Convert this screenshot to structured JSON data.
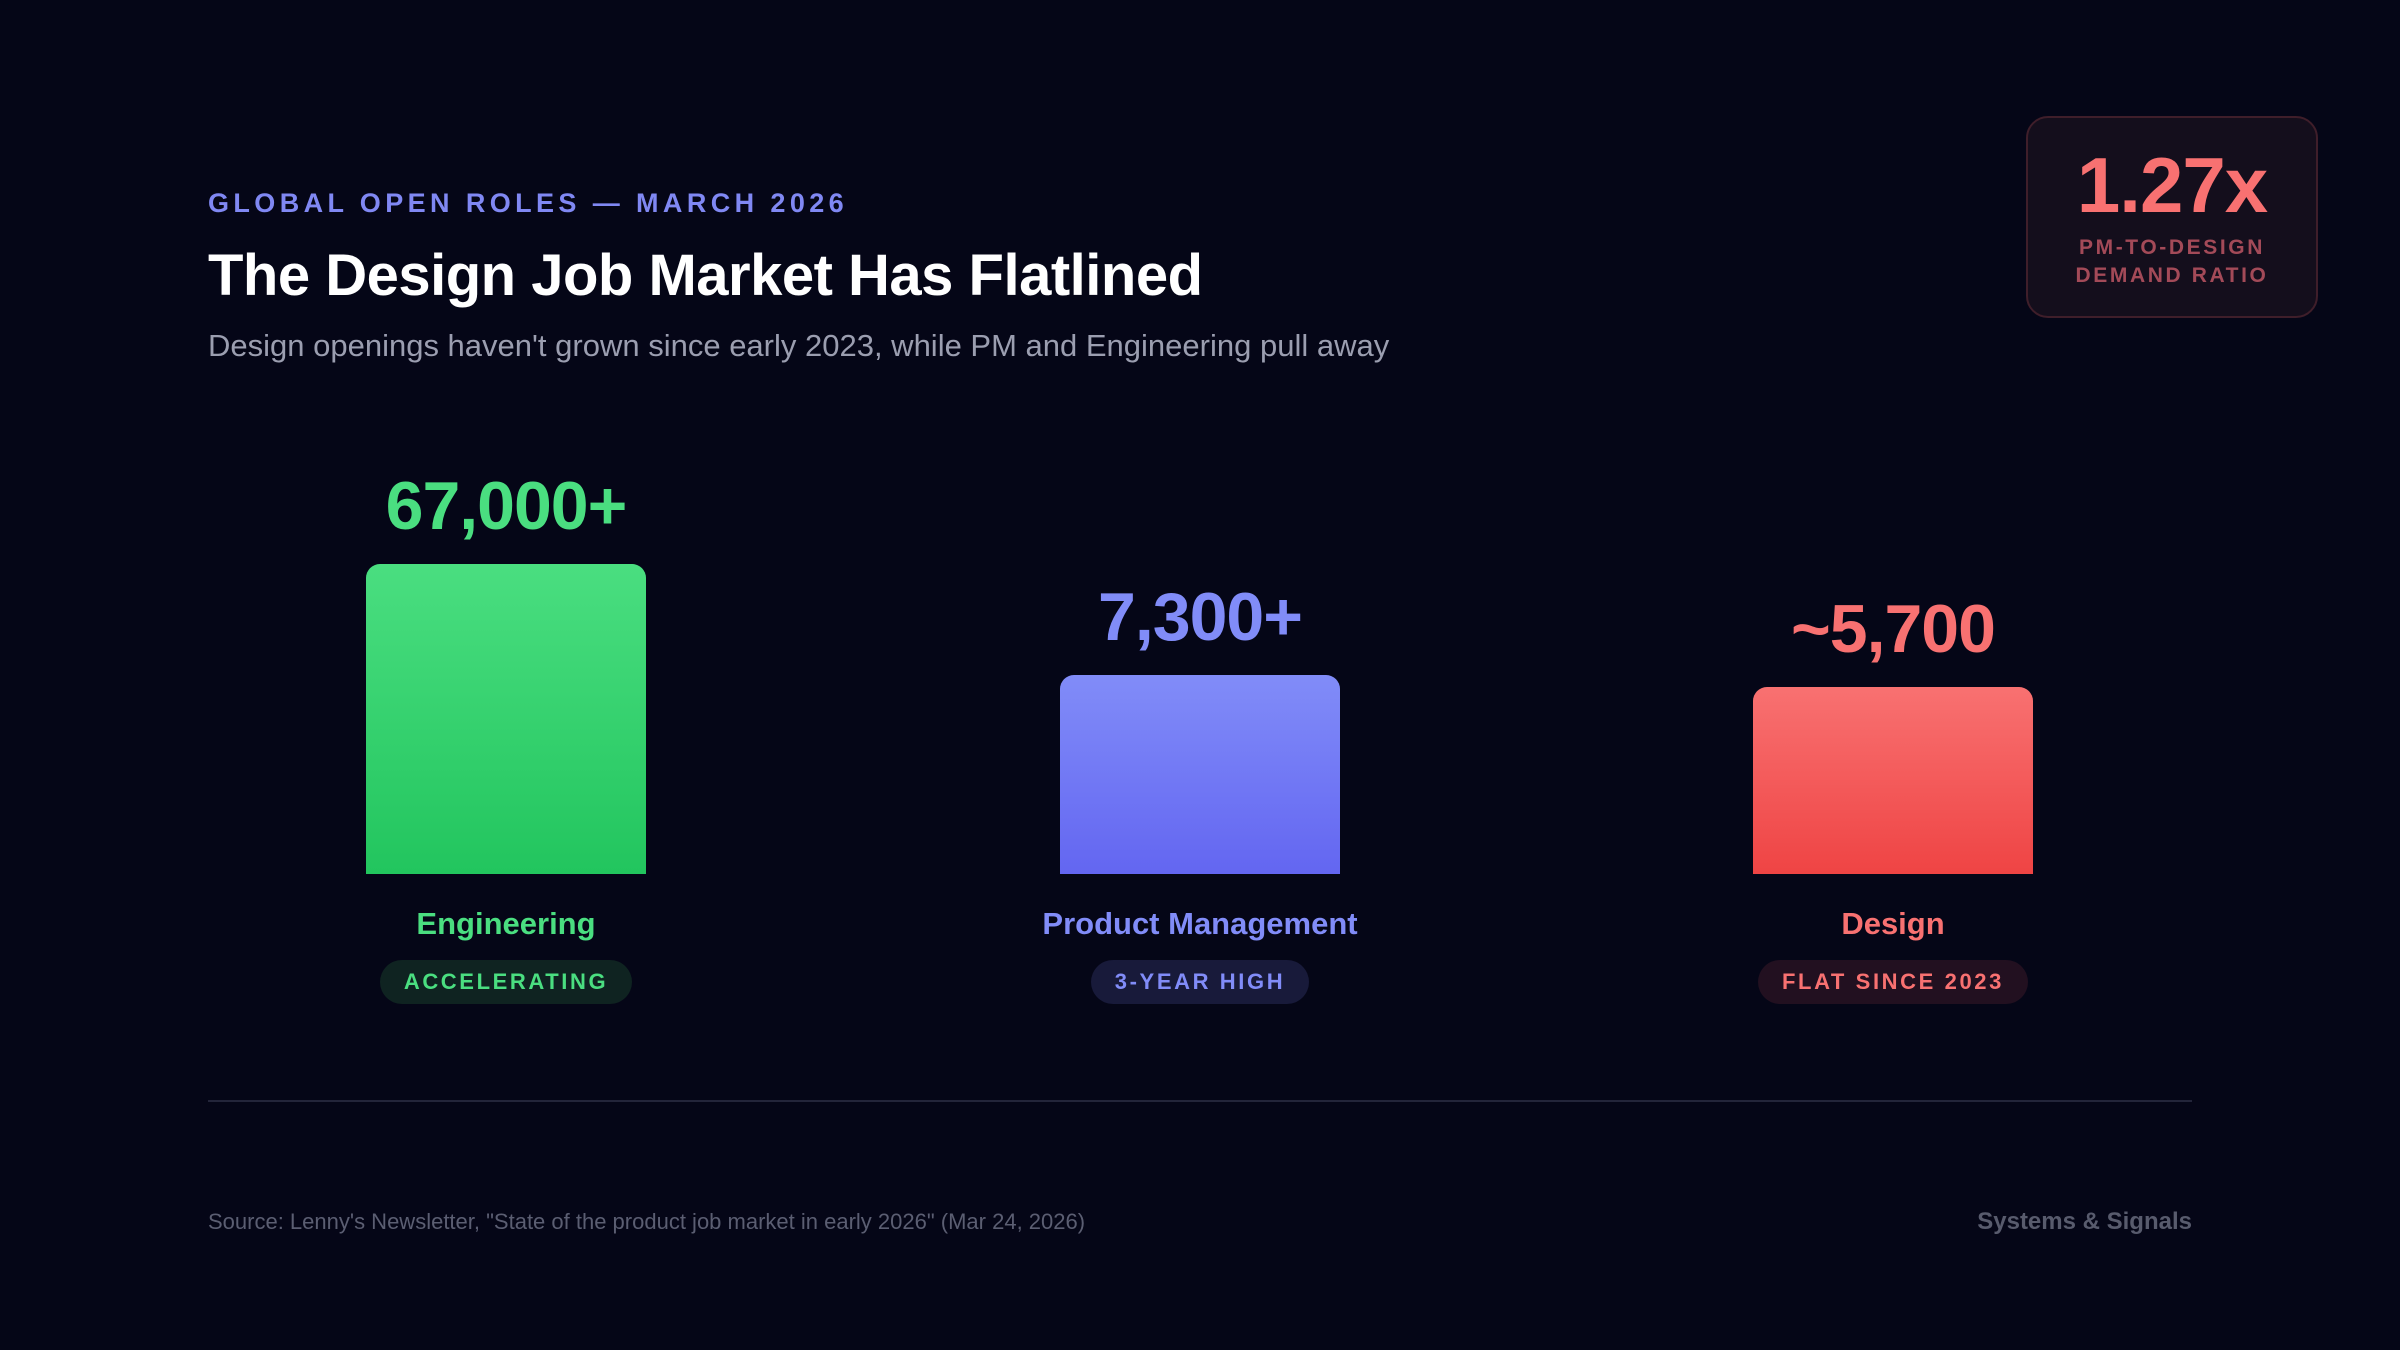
{
  "header": {
    "eyebrow": "GLOBAL OPEN ROLES — MARCH 2026",
    "title": "The Design Job Market Has Flatlined",
    "subtitle": "Design openings haven't grown since early 2023, while PM and Engineering pull away"
  },
  "ratio_card": {
    "value": "1.27x",
    "label_line1": "PM-TO-DESIGN",
    "label_line2": "DEMAND RATIO",
    "value_color": "#f87171",
    "label_color": "#a34a58"
  },
  "chart_data": {
    "type": "bar",
    "categories": [
      "Engineering",
      "Product Management",
      "Design"
    ],
    "values": [
      67000,
      7300,
      5700
    ],
    "value_labels": [
      "67,000+",
      "7,300+",
      "~5,700"
    ],
    "badges": [
      "ACCELERATING",
      "3-YEAR HIGH",
      "FLAT SINCE 2023"
    ],
    "colors": {
      "Engineering": {
        "top": "#4ade80",
        "bottom": "#22c55e",
        "text": "#4ade80",
        "badge_bg": "#0f2321",
        "badge_text": "#4ade80"
      },
      "Product Management": {
        "top": "#818cf8",
        "bottom": "#6366f1",
        "text": "#818cf8",
        "badge_bg": "#181a3a",
        "badge_text": "#818cf8"
      },
      "Design": {
        "top": "#f87171",
        "bottom": "#ef4444",
        "text": "#f87171",
        "badge_bg": "#221020",
        "badge_text": "#f87171"
      }
    },
    "scale": "non-linear (bars not proportional to values)",
    "title": "",
    "xlabel": "",
    "ylabel": ""
  },
  "footer": {
    "source": "Source: Lenny's Newsletter, \"State of the product job market in early 2026\" (Mar 24, 2026)",
    "brand": "Systems & Signals"
  }
}
